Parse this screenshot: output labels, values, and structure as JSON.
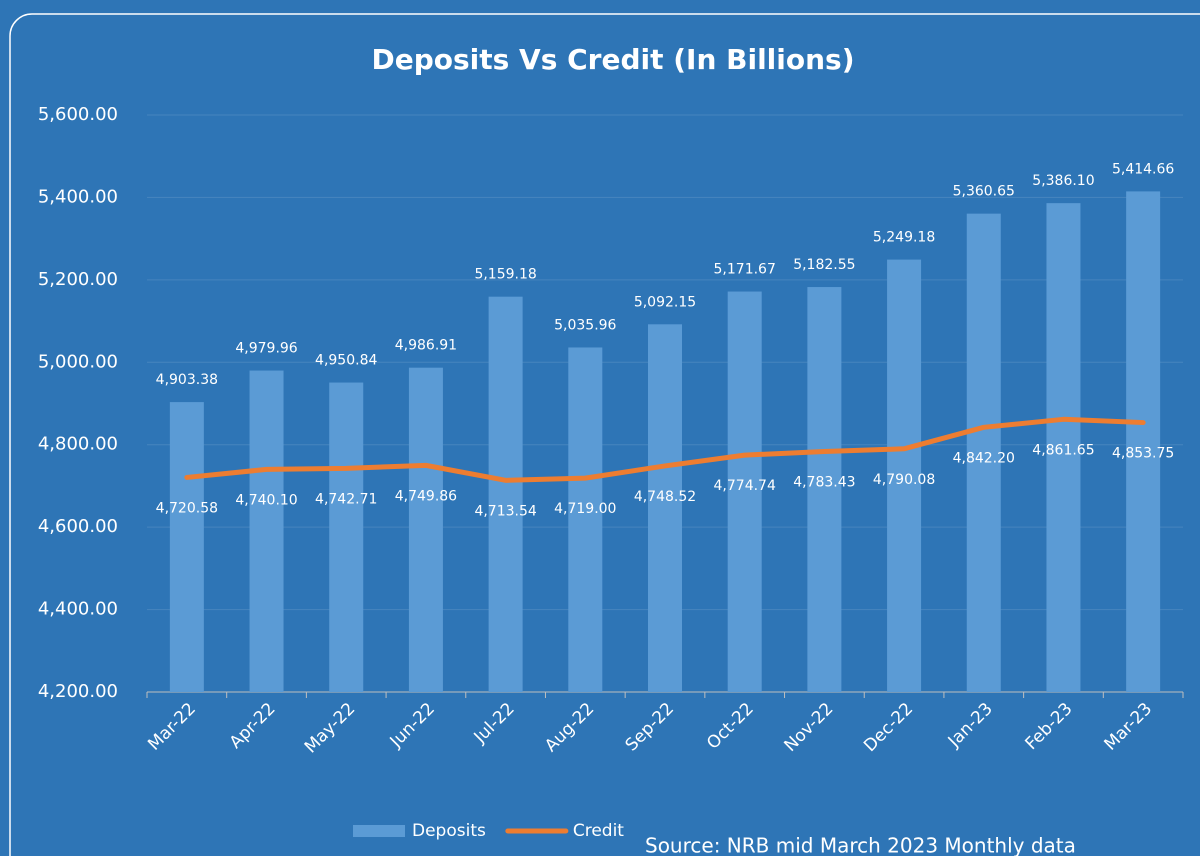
{
  "chart_data": {
    "type": "bar",
    "title": "Deposits Vs Credit (In Billions)",
    "source": "Source: NRB mid March 2023 Monthly data",
    "categories": [
      "Mar-22",
      "Apr-22",
      "May-22",
      "Jun-22",
      "Jul-22",
      "Aug-22",
      "Sep-22",
      "Oct-22",
      "Nov-22",
      "Dec-22",
      "Jan-23",
      "Feb-23",
      "Mar-23"
    ],
    "series": [
      {
        "name": "Deposits",
        "type": "bar",
        "color": "#5b9bd5",
        "values": [
          4903.38,
          4979.96,
          4950.84,
          4986.91,
          5159.18,
          5035.96,
          5092.15,
          5171.67,
          5182.55,
          5249.18,
          5360.65,
          5386.1,
          5414.66
        ],
        "value_labels": [
          "4,903.38",
          "4,979.96",
          "4,950.84",
          "4,986.91",
          "5,159.18",
          "5,035.96",
          "5,092.15",
          "5,171.67",
          "5,182.55",
          "5,249.18",
          "5,360.65",
          "5,386.10",
          "5,414.66"
        ]
      },
      {
        "name": "Credit",
        "type": "line",
        "color": "#ed7d31",
        "values": [
          4720.58,
          4740.1,
          4742.71,
          4749.86,
          4713.54,
          4719.0,
          4748.52,
          4774.74,
          4783.43,
          4790.08,
          4842.2,
          4861.65,
          4853.75
        ],
        "value_labels": [
          "4,720.58",
          "4,740.10",
          "4,742.71",
          "4,749.86",
          "4,713.54",
          "4,719.00",
          "4,748.52",
          "4,774.74",
          "4,783.43",
          "4,790.08",
          "4,842.20",
          "4,861.65",
          "4,853.75"
        ]
      }
    ],
    "ylim": [
      4200,
      5600
    ],
    "yticks": [
      {
        "value": 4200,
        "label": "4,200.00"
      },
      {
        "value": 4400,
        "label": "4,400.00"
      },
      {
        "value": 4600,
        "label": "4,600.00"
      },
      {
        "value": 4800,
        "label": "4,800.00"
      },
      {
        "value": 5000,
        "label": "5,000.00"
      },
      {
        "value": 5200,
        "label": "5,200.00"
      },
      {
        "value": 5400,
        "label": "5,400.00"
      },
      {
        "value": 5600,
        "label": "5,600.00"
      }
    ],
    "grid": true,
    "legend": "bottom"
  }
}
